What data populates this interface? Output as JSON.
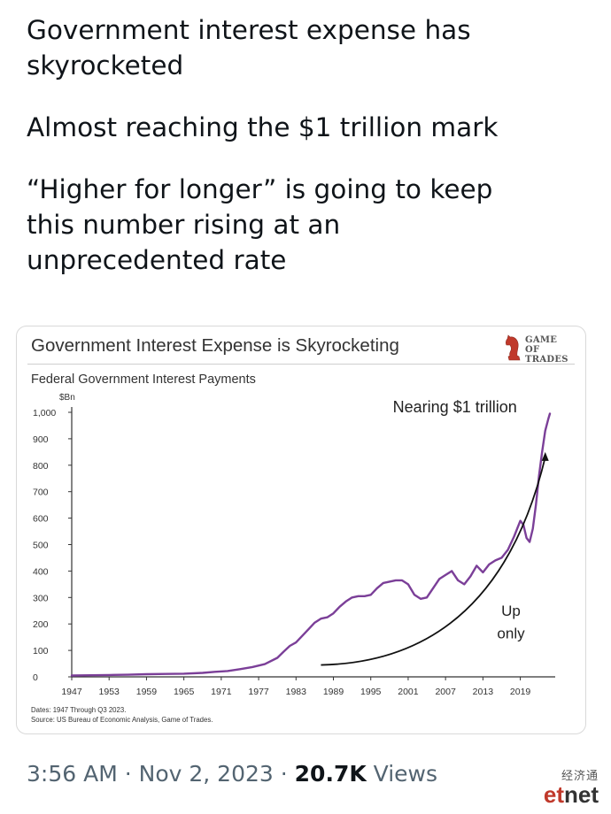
{
  "tweet": {
    "lines": [
      "Government interest expense has",
      "skyrocketed",
      "Almost reaching the $1 trillion mark",
      "“Higher for longer” is going to keep",
      "this number rising at an",
      "unprecedented rate"
    ]
  },
  "card": {
    "title": "Government Interest Expense is Skyrocketing",
    "logo_text_line1": "GAME OF",
    "logo_text_line2": "TRADES",
    "logo_icon": "chess-knight-icon"
  },
  "chart_data": {
    "type": "line",
    "title": "Government Interest Expense is Skyrocketing",
    "subtitle": "Federal Government Interest Payments",
    "ylabel": "$Bn",
    "xlabel": "",
    "ylim": [
      0,
      1000
    ],
    "xlim": [
      1947,
      2023.75
    ],
    "yticks": [
      0,
      100,
      200,
      300,
      400,
      500,
      600,
      700,
      800,
      900,
      1000
    ],
    "ytick_labels": [
      "0",
      "100",
      "200",
      "300",
      "400",
      "500",
      "600",
      "700",
      "800",
      "900",
      "1,000"
    ],
    "xticks": [
      1947,
      1953,
      1959,
      1965,
      1971,
      1977,
      1983,
      1989,
      1995,
      2001,
      2007,
      2013,
      2019
    ],
    "grid": false,
    "series": [
      {
        "name": "",
        "color": "#7b3f98",
        "x": [
          1947,
          1950,
          1953,
          1956,
          1959,
          1962,
          1965,
          1968,
          1970,
          1972,
          1974,
          1976,
          1978,
          1980,
          1981,
          1982,
          1983,
          1984,
          1985,
          1986,
          1987,
          1988,
          1989,
          1990,
          1991,
          1992,
          1993,
          1994,
          1995,
          1996,
          1997,
          1998,
          1999,
          2000,
          2001,
          2002,
          2003,
          2004,
          2005,
          2006,
          2007,
          2008,
          2009,
          2010,
          2011,
          2012,
          2013,
          2014,
          2015,
          2016,
          2017,
          2018,
          2019,
          2019.5,
          2020,
          2020.5,
          2021,
          2021.5,
          2022,
          2022.5,
          2023,
          2023.5,
          2023.75
        ],
        "y": [
          5,
          6,
          7,
          8,
          10,
          11,
          12,
          15,
          19,
          22,
          29,
          37,
          48,
          72,
          95,
          117,
          130,
          155,
          180,
          205,
          220,
          225,
          240,
          265,
          285,
          300,
          305,
          305,
          310,
          335,
          355,
          360,
          365,
          365,
          350,
          310,
          295,
          300,
          335,
          370,
          385,
          400,
          365,
          350,
          380,
          420,
          395,
          425,
          440,
          450,
          480,
          530,
          590,
          575,
          525,
          510,
          560,
          650,
          760,
          850,
          930,
          975,
          995
        ]
      }
    ],
    "annotations": [
      {
        "text": "Nearing $1 trillion",
        "x": 2008.5,
        "y": 1000
      },
      {
        "text": "Up",
        "x": 2017.5,
        "y": 230
      },
      {
        "text": "only",
        "x": 2017.5,
        "y": 145
      }
    ],
    "trend_arrow": {
      "x_start": 1987,
      "y_start": 45,
      "x_end": 2023,
      "y_end": 830
    },
    "notes": [
      "Dates: 1947 Through Q3 2023.",
      "Source: US Bureau of Economic Analysis, Game of Trades."
    ]
  },
  "footer": {
    "time": "3:56 AM",
    "separator": "·",
    "date": "Nov 2, 2023",
    "views_count": "20.7K",
    "views_label": "Views"
  },
  "watermark": {
    "cn": "经济通",
    "brand_a": "et",
    "brand_b": "net"
  }
}
